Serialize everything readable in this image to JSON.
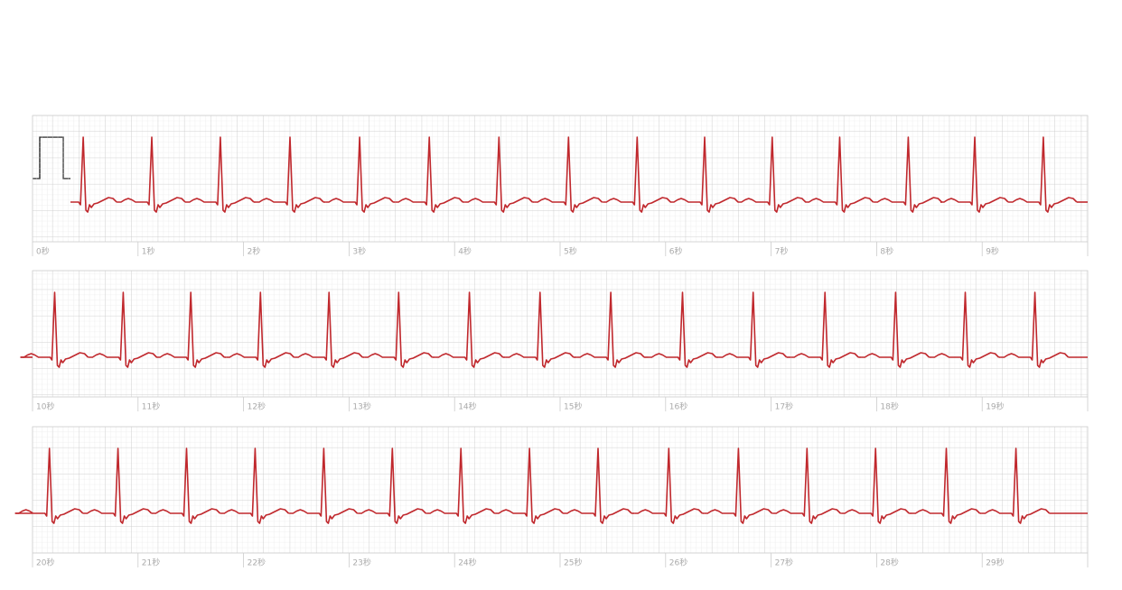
{
  "chart_data": {
    "type": "ecg",
    "rows": [
      {
        "xlim": [
          0,
          10
        ],
        "xticks": [
          {
            "value": 0,
            "label": "0秒"
          },
          {
            "value": 1,
            "label": "1秒"
          },
          {
            "value": 2,
            "label": "2秒"
          },
          {
            "value": 3,
            "label": "3秒"
          },
          {
            "value": 4,
            "label": "4秒"
          },
          {
            "value": 5,
            "label": "5秒"
          },
          {
            "value": 6,
            "label": "6秒"
          },
          {
            "value": 7,
            "label": "7秒"
          },
          {
            "value": 8,
            "label": "8秒"
          },
          {
            "value": 9,
            "label": "9秒"
          }
        ],
        "beats": [
          0.48,
          1.13,
          1.78,
          2.44,
          3.1,
          3.76,
          4.42,
          5.08,
          5.73,
          6.37,
          7.01,
          7.65,
          8.3,
          8.93,
          9.58
        ]
      },
      {
        "xlim": [
          10,
          20
        ],
        "xticks": [
          {
            "value": 10,
            "label": "10秒"
          },
          {
            "value": 11,
            "label": "11秒"
          },
          {
            "value": 12,
            "label": "12秒"
          },
          {
            "value": 13,
            "label": "13秒"
          },
          {
            "value": 14,
            "label": "14秒"
          },
          {
            "value": 15,
            "label": "15秒"
          },
          {
            "value": 16,
            "label": "16秒"
          },
          {
            "value": 17,
            "label": "17秒"
          },
          {
            "value": 18,
            "label": "18秒"
          },
          {
            "value": 19,
            "label": "19秒"
          }
        ],
        "beats": [
          10.21,
          10.86,
          11.5,
          12.16,
          12.81,
          13.47,
          14.14,
          14.81,
          15.48,
          16.16,
          16.83,
          17.51,
          18.18,
          18.84,
          19.5
        ]
      },
      {
        "xlim": [
          20,
          30
        ],
        "xticks": [
          {
            "value": 20,
            "label": "20秒"
          },
          {
            "value": 21,
            "label": "21秒"
          },
          {
            "value": 22,
            "label": "22秒"
          },
          {
            "value": 23,
            "label": "23秒"
          },
          {
            "value": 24,
            "label": "24秒"
          },
          {
            "value": 25,
            "label": "25秒"
          },
          {
            "value": 26,
            "label": "26秒"
          },
          {
            "value": 27,
            "label": "27秒"
          },
          {
            "value": 28,
            "label": "28秒"
          },
          {
            "value": 29,
            "label": "29秒"
          }
        ],
        "beats": [
          20.16,
          20.81,
          21.46,
          22.11,
          22.76,
          23.41,
          24.06,
          24.71,
          25.36,
          26.03,
          26.69,
          27.34,
          27.99,
          28.66,
          29.32
        ]
      }
    ]
  }
}
